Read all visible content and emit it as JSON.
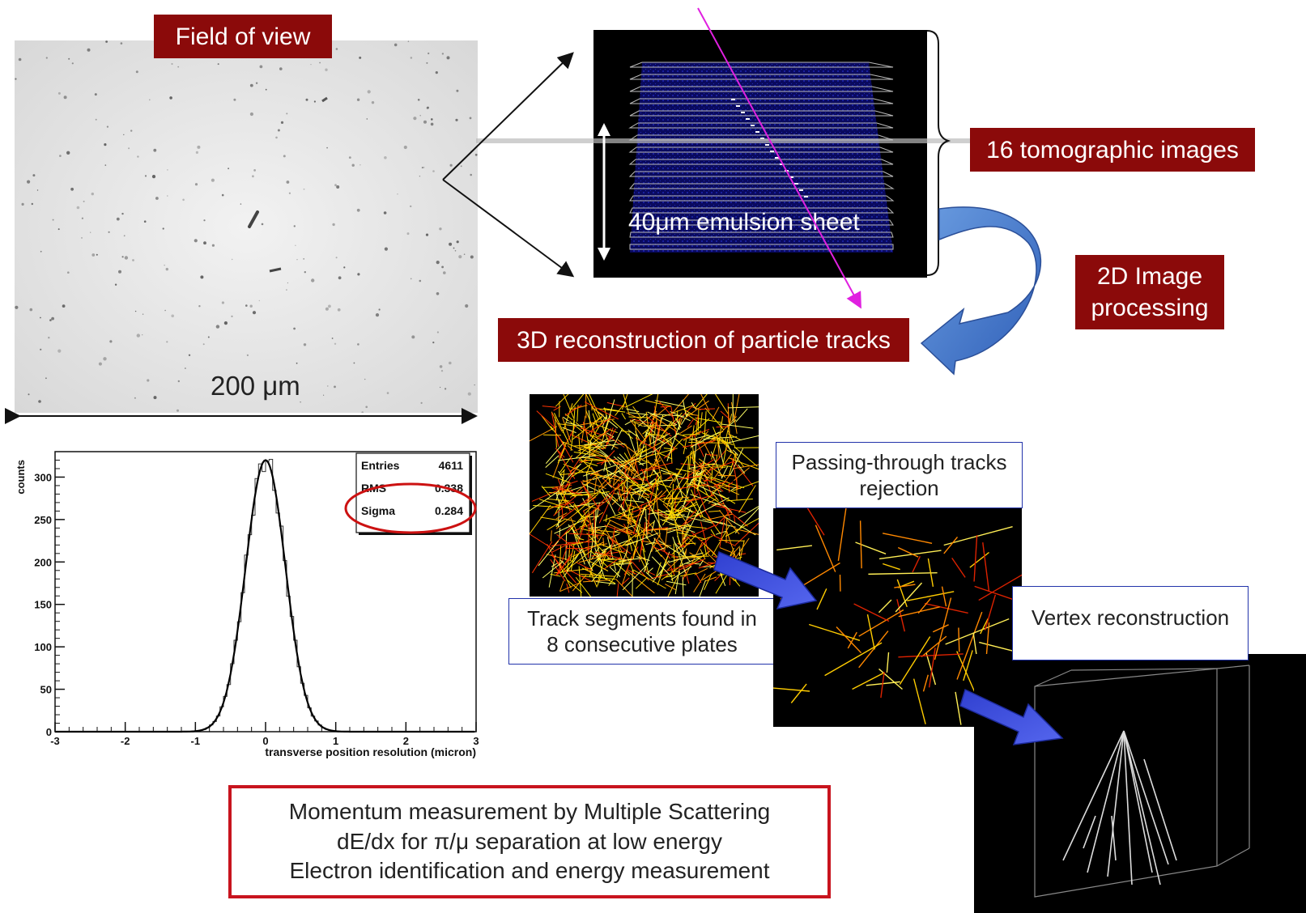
{
  "labels": {
    "field_of_view": "Field of view",
    "scale_bar": "200 μm",
    "emulsion_sheet": "40μm emulsion sheet",
    "tomographic_images": "16 tomographic images",
    "image_processing_line1": "2D Image",
    "image_processing_line2": "processing",
    "reconstruction_3d": "3D reconstruction of particle tracks",
    "track_segments_line1": "Track segments found in",
    "track_segments_line2": "8 consecutive plates",
    "passing_through_line1": "Passing-through tracks",
    "passing_through_line2": "rejection",
    "vertex_reconstruction": "Vertex reconstruction"
  },
  "bottom_box": {
    "line1": "Momentum measurement by Multiple Scattering",
    "line2": "dE/dx for π/μ separation at low energy",
    "line3": "Electron identification and energy measurement"
  },
  "chart_data": {
    "type": "histogram",
    "xlabel": "transverse position resolution (micron)",
    "ylabel": "counts",
    "xlim": [
      -3,
      3
    ],
    "ylim": [
      0,
      330
    ],
    "x_ticks": [
      -3,
      -2,
      -1,
      0,
      1,
      2,
      3
    ],
    "y_ticks": [
      0,
      50,
      100,
      150,
      200,
      250,
      300
    ],
    "stats": [
      {
        "name": "Entries",
        "value": "4611"
      },
      {
        "name": "RMS",
        "value": "0.338"
      },
      {
        "name": "Sigma",
        "value": "0.284"
      }
    ],
    "fit": {
      "type": "gaussian",
      "mean": 0,
      "sigma": 0.284,
      "peak": 320
    }
  },
  "colors": {
    "label_red": "#8b0a0a",
    "box_blue": "#2233aa",
    "track_magenta": "#e020e0",
    "arrow_blue": "#4a7fd0",
    "highlight_red": "#cc1111"
  }
}
